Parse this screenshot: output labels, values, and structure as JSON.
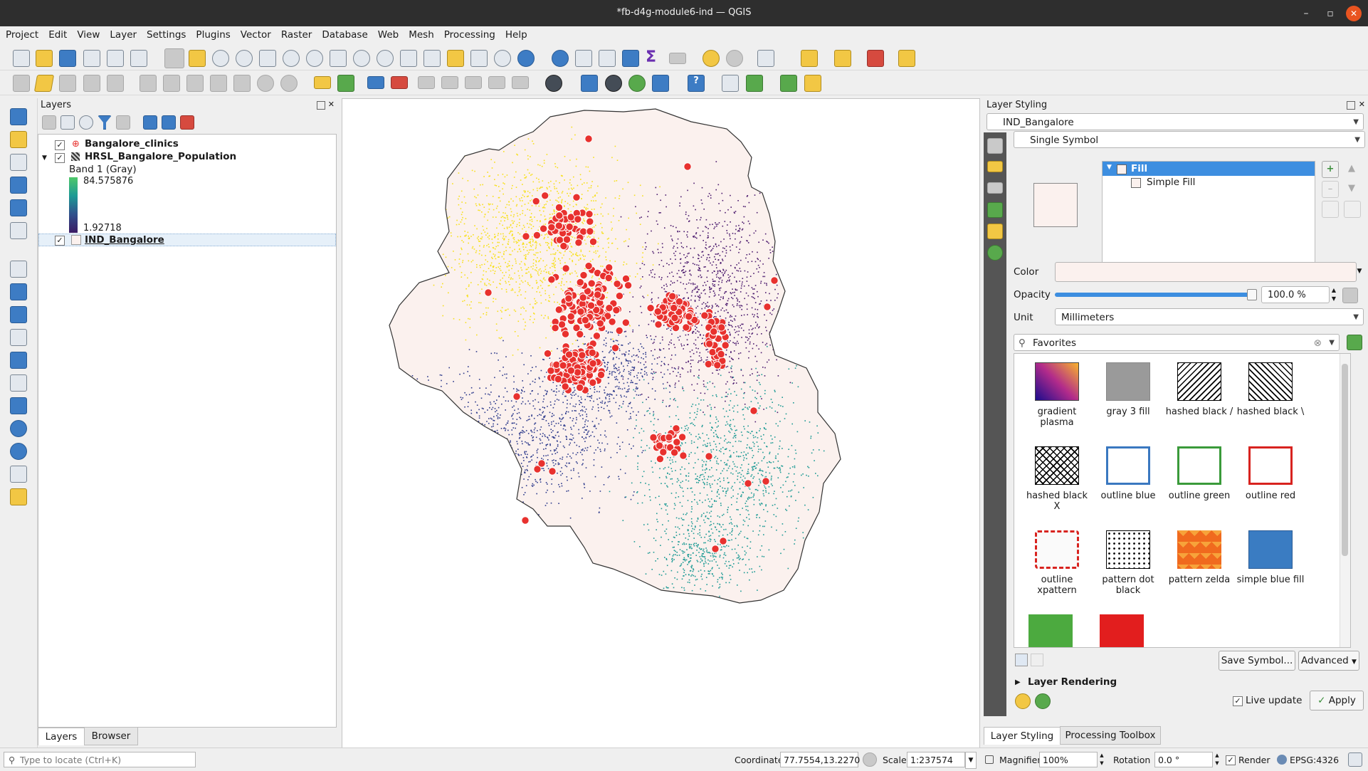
{
  "window": {
    "title": "*fb-d4g-module6-ind — QGIS"
  },
  "menu": [
    "Project",
    "Edit",
    "View",
    "Layer",
    "Settings",
    "Plugins",
    "Vector",
    "Raster",
    "Database",
    "Web",
    "Mesh",
    "Processing",
    "Help"
  ],
  "layers_panel": {
    "title": "Layers",
    "layers": {
      "clinics": "Bangalore_clinics",
      "population": "HRSL_Bangalore_Population",
      "band": "Band 1 (Gray)",
      "max": "84.575876",
      "min": "1.92718",
      "boundary": "IND_Bangalore"
    },
    "tabs": {
      "layers": "Layers",
      "browser": "Browser"
    }
  },
  "styling": {
    "title": "Layer Styling",
    "layer_combo": "IND_Bangalore",
    "renderer_combo": "Single Symbol",
    "tree": {
      "fill": "Fill",
      "simple_fill": "Simple Fill"
    },
    "color_label": "Color",
    "opacity_label": "Opacity",
    "opacity_value": "100.0 %",
    "opacity_fraction": 1.0,
    "unit_label": "Unit",
    "unit_value": "Millimeters",
    "search_value": "Favorites",
    "symbols": [
      {
        "name": "gradient\nplasma"
      },
      {
        "name": "gray 3 fill"
      },
      {
        "name": "hashed black /"
      },
      {
        "name": "hashed black \\"
      },
      {
        "name": "hashed black\nX"
      },
      {
        "name": "outline blue"
      },
      {
        "name": "outline green"
      },
      {
        "name": "outline red"
      },
      {
        "name": "outline\nxpattern"
      },
      {
        "name": "pattern dot\nblack"
      },
      {
        "name": "pattern zelda"
      },
      {
        "name": "simple blue fill"
      }
    ],
    "save_symbol": "Save Symbol...",
    "advanced": "Advanced",
    "layer_rendering": "Layer Rendering",
    "live_update": "Live update",
    "apply": "Apply",
    "tabs": {
      "styling": "Layer Styling",
      "processing": "Processing Toolbox"
    }
  },
  "statusbar": {
    "locate_placeholder": "Type to locate (Ctrl+K)",
    "coordinate_label": "Coordinate",
    "coordinate_value": "77.7554,13.2270",
    "scale_label": "Scale",
    "scale_value": "1:237574",
    "magnifier_label": "Magnifier",
    "magnifier_value": "100%",
    "rotation_label": "Rotation",
    "rotation_value": "0.0 °",
    "render_label": "Render",
    "crs": "EPSG:4326"
  },
  "colors": {
    "accent": "#3d8ee0",
    "boundary_fill": "#fbf1ee",
    "clinic_red": "#e8312e",
    "pop_yellow": "#f7e01a",
    "pop_purple": "#4b1a6e",
    "pop_navy": "#2d3a8c",
    "pop_teal": "#1c9a94"
  }
}
